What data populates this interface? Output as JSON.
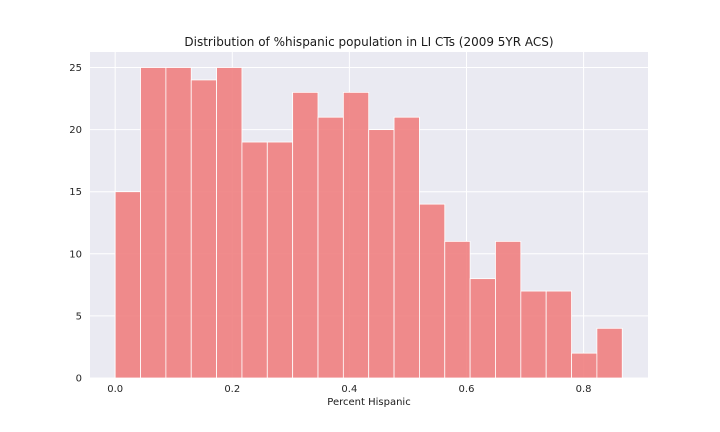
{
  "chart_data": {
    "type": "bar",
    "subtype": "histogram",
    "title": "Distribution of %hispanic population in LI CTs (2009 5YR ACS)",
    "xlabel": "Percent Hispanic",
    "ylabel": "",
    "xlim": [
      -0.043,
      0.91
    ],
    "ylim": [
      0,
      26.25
    ],
    "x_ticks": [
      0.0,
      0.2,
      0.4,
      0.6,
      0.8
    ],
    "x_tick_labels": [
      "0.0",
      "0.2",
      "0.4",
      "0.6",
      "0.8"
    ],
    "y_ticks": [
      0,
      5,
      10,
      15,
      20,
      25
    ],
    "y_tick_labels": [
      "0",
      "5",
      "10",
      "15",
      "20",
      "25"
    ],
    "bin_start": 0.0,
    "bin_width": 0.0433,
    "values": [
      15,
      25,
      25,
      24,
      25,
      19,
      19,
      23,
      21,
      23,
      20,
      21,
      14,
      11,
      8,
      11,
      7,
      7,
      2,
      4
    ],
    "grid": true,
    "colors": {
      "bar": "#f08080",
      "bar_opacity": 0.9,
      "bar_edge": "#ffffff",
      "plot_background": "#eaeaf2",
      "grid": "#ffffff"
    }
  }
}
